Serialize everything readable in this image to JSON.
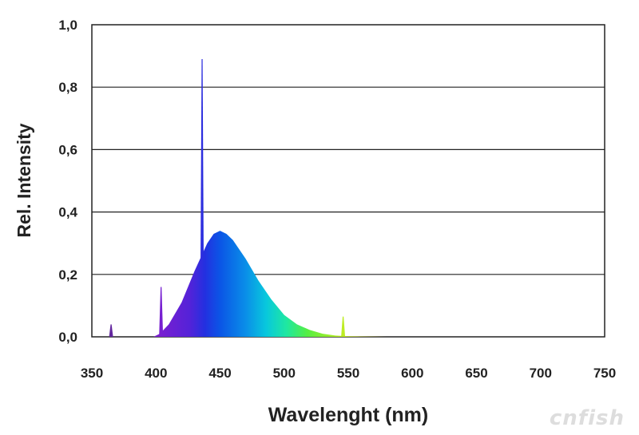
{
  "chart_data": {
    "type": "area",
    "xlabel": "Wavelenght (nm)",
    "ylabel": "Rel. Intensity",
    "xlim": [
      350,
      750
    ],
    "ylim": [
      0,
      1.0
    ],
    "x_ticks": [
      {
        "value": 350,
        "label": "350"
      },
      {
        "value": 400,
        "label": "400"
      },
      {
        "value": 450,
        "label": "450"
      },
      {
        "value": 500,
        "label": "500"
      },
      {
        "value": 550,
        "label": "550"
      },
      {
        "value": 600,
        "label": "600"
      },
      {
        "value": 650,
        "label": "650"
      },
      {
        "value": 700,
        "label": "700"
      },
      {
        "value": 750,
        "label": "750"
      }
    ],
    "y_ticks": [
      {
        "value": 0.0,
        "label": "0,0"
      },
      {
        "value": 0.2,
        "label": "0,2"
      },
      {
        "value": 0.4,
        "label": "0,4"
      },
      {
        "value": 0.6,
        "label": "0,6"
      },
      {
        "value": 0.8,
        "label": "0,8"
      },
      {
        "value": 1.0,
        "label": "1,0"
      }
    ],
    "grid": "horizontal",
    "series": [
      {
        "x": [
          350,
          365,
          398,
          403,
          410,
          420,
          430,
          440,
          445,
          450,
          455,
          460,
          470,
          480,
          490,
          500,
          510,
          520,
          530,
          540,
          550,
          560,
          580
        ],
        "y": [
          0.0,
          0.0,
          0.0,
          0.01,
          0.04,
          0.11,
          0.21,
          0.3,
          0.33,
          0.34,
          0.33,
          0.31,
          0.25,
          0.18,
          0.12,
          0.07,
          0.04,
          0.022,
          0.01,
          0.004,
          0.002,
          0.001,
          0.0
        ]
      }
    ],
    "peaks": [
      {
        "x": 365,
        "y": 0.04
      },
      {
        "x": 404,
        "y": 0.16
      },
      {
        "x": 436,
        "y": 0.89
      },
      {
        "x": 546,
        "y": 0.065
      }
    ]
  },
  "watermark": "cnfish"
}
